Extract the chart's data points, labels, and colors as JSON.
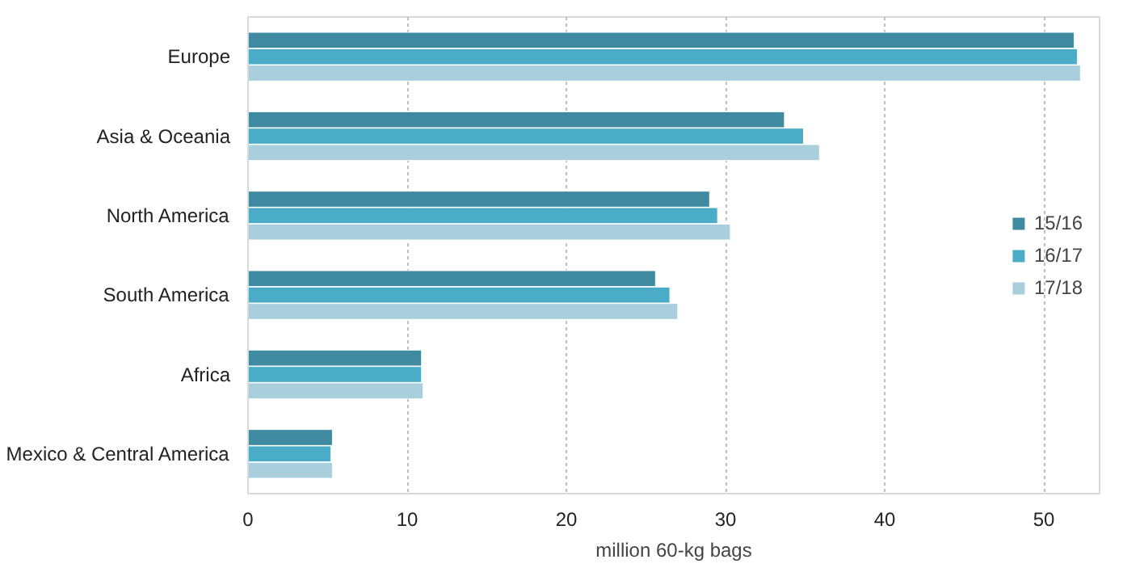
{
  "chart_data": {
    "type": "bar",
    "orientation": "horizontal",
    "xlabel": "million 60-kg bags",
    "categories": [
      "Europe",
      "Asia & Oceania",
      "North America",
      "South America",
      "Africa",
      "Mexico & Central America"
    ],
    "series": [
      {
        "name": "15/16",
        "color": "#3f8aa0",
        "values": [
          51.9,
          33.7,
          29.0,
          25.6,
          10.9,
          5.3
        ]
      },
      {
        "name": "16/17",
        "color": "#4aacc6",
        "values": [
          52.1,
          34.9,
          29.5,
          26.5,
          10.9,
          5.2
        ]
      },
      {
        "name": "17/18",
        "color": "#a9cfdc",
        "values": [
          52.3,
          35.9,
          30.3,
          27.0,
          11.0,
          5.3
        ]
      }
    ],
    "xlim": [
      0,
      53.5
    ],
    "xticks": [
      0,
      10,
      20,
      30,
      40,
      50
    ],
    "grid": "x",
    "legend": "right"
  }
}
